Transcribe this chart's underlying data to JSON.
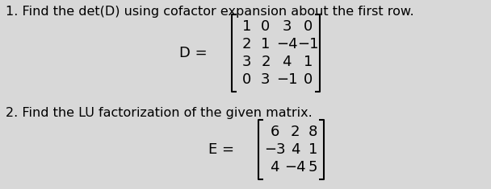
{
  "background_color": "#d8d8d8",
  "text1_full": "1. Find the det(D) using cofactor expansion about the first row.",
  "text2_full": "2. Find the LU factorization of the given matrix.",
  "D_label": "D =",
  "E_label": "E =",
  "D_matrix": [
    [
      "1",
      "0",
      "3",
      "0"
    ],
    [
      "2",
      "1",
      "−4",
      "−1"
    ],
    [
      "3",
      "2",
      "4",
      "1"
    ],
    [
      "0",
      "3",
      "−1",
      "0"
    ]
  ],
  "E_matrix": [
    [
      "6",
      "2",
      "8"
    ],
    [
      "−3",
      "4",
      "1"
    ],
    [
      "4",
      "−4",
      "5"
    ]
  ],
  "font_size_text": 11.5,
  "font_size_matrix": 13,
  "font_size_label": 13
}
